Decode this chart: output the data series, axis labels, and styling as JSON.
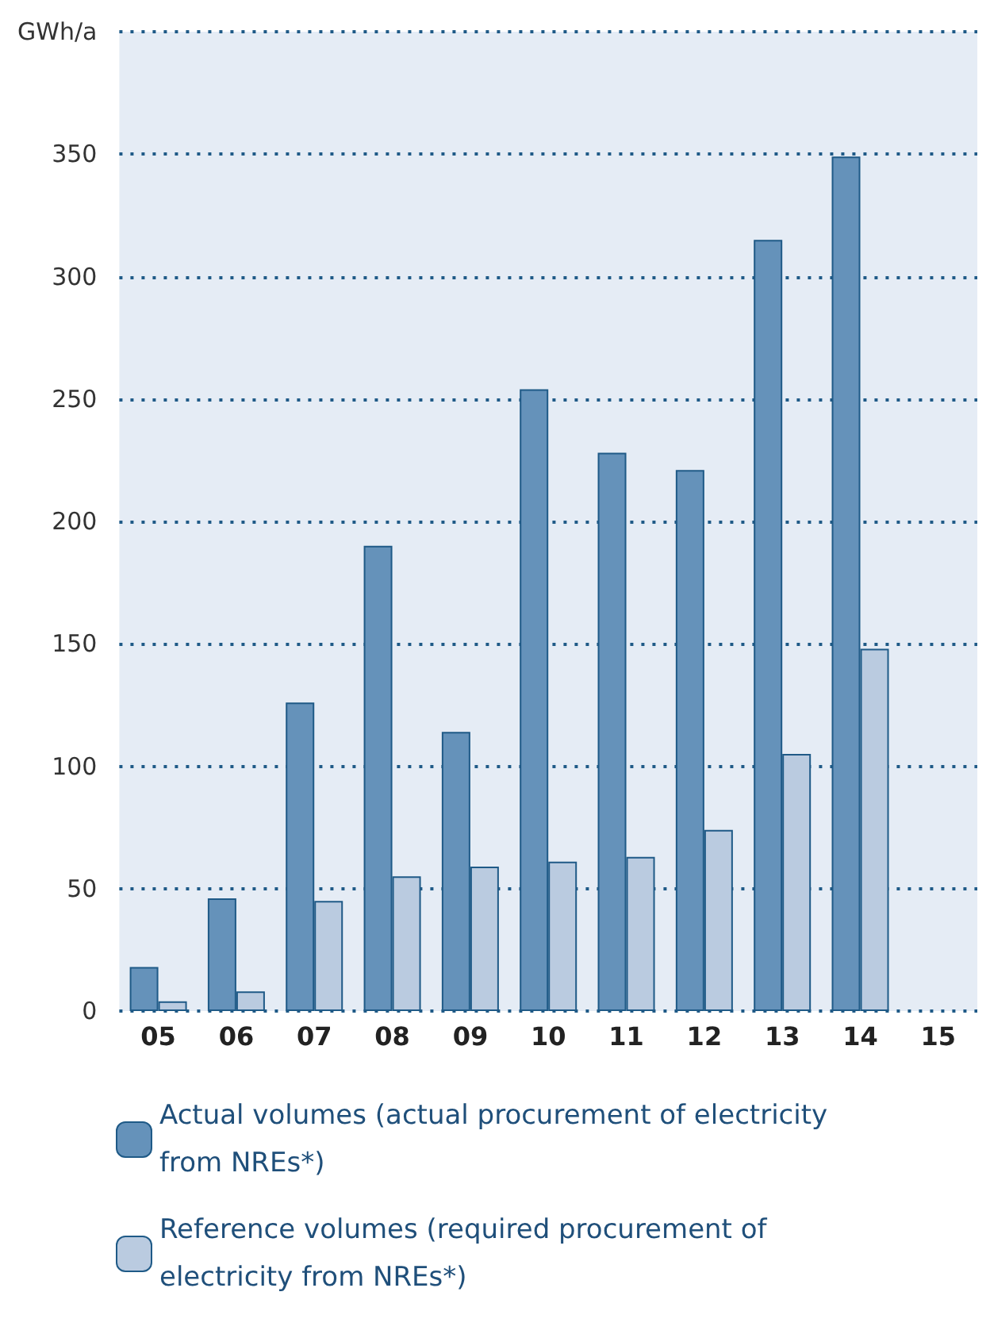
{
  "chart_data": {
    "type": "bar",
    "categories": [
      "05",
      "06",
      "07",
      "08",
      "09",
      "10",
      "11",
      "12",
      "13",
      "14",
      "15"
    ],
    "series": [
      {
        "name": "Actual volumes (actual procurement of electricity from NREs*)",
        "color": "#6592ba",
        "values": [
          18,
          46,
          126,
          190,
          114,
          254,
          228,
          221,
          315,
          349,
          null
        ]
      },
      {
        "name": "Reference volumes (required procurement of electricity from NREs*)",
        "color": "#bacbe0",
        "values": [
          4,
          8,
          45,
          55,
          59,
          61,
          63,
          74,
          105,
          148,
          null
        ]
      }
    ],
    "ylim": [
      0,
      400
    ],
    "yticks": [
      0,
      50,
      100,
      150,
      200,
      250,
      300,
      350,
      {
        "value": 400,
        "label": "GWh/a"
      }
    ],
    "grid": "y",
    "legend": "bottom"
  }
}
